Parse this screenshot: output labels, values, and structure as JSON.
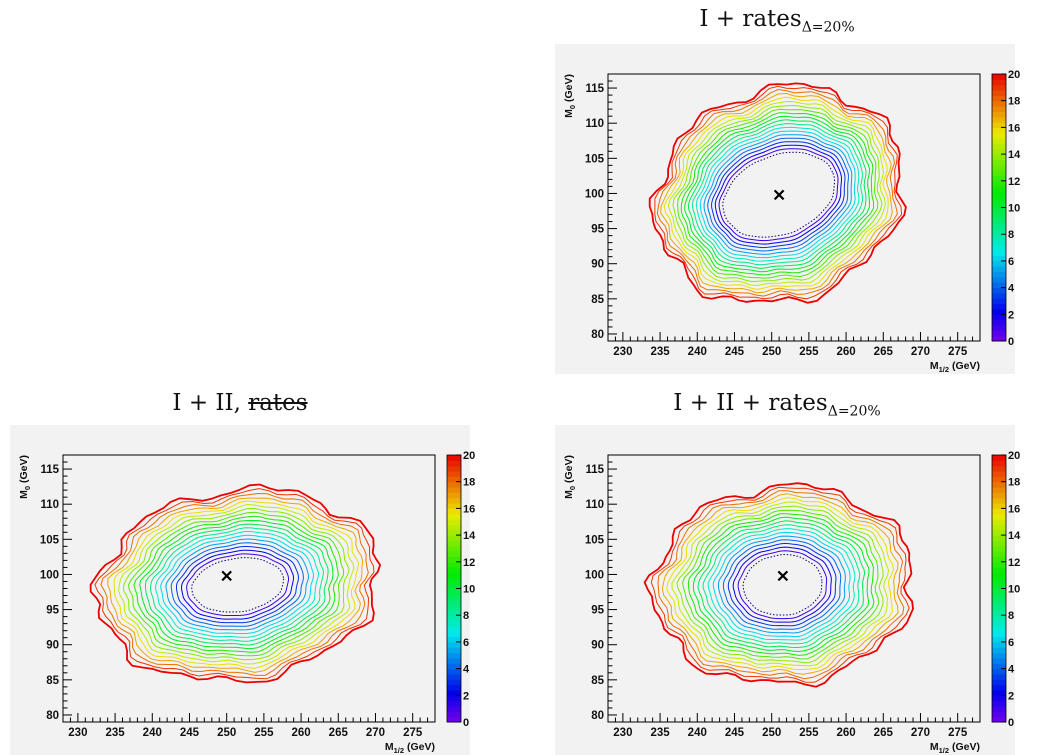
{
  "chart_data": [
    {
      "id": "top-right",
      "type": "contour",
      "title_main": "I + rates",
      "title_sub": "Δ=20%",
      "title_struck": "",
      "xlabel": "M1/2 (GeV)",
      "xlabel_main": "M",
      "xlabel_sub": "1/2",
      "xlabel_unit": " (GeV)",
      "ylabel": "M0 (GeV)",
      "ylabel_main": "M",
      "ylabel_sub": "0",
      "ylabel_unit": " (GeV)",
      "xlim": [
        228,
        278
      ],
      "ylim": [
        79,
        117
      ],
      "xticks": [
        230,
        235,
        240,
        245,
        250,
        255,
        260,
        265,
        270,
        275
      ],
      "yticks": [
        80,
        85,
        90,
        95,
        100,
        105,
        110,
        115
      ],
      "colorbar": {
        "range": [
          0,
          20
        ],
        "ticks": [
          0,
          2,
          4,
          6,
          8,
          10,
          12,
          14,
          16,
          18,
          20
        ]
      },
      "best_fit_marker": {
        "x": 251,
        "y": 99.8
      },
      "contour": {
        "center": [
          251,
          99.8
        ],
        "outer_half_widths": [
          17,
          15
        ],
        "inner_half_widths": [
          7.8,
          5.6
        ],
        "tilt_deg": -22
      }
    },
    {
      "id": "bottom-left",
      "type": "contour",
      "title_main": "I + II, ",
      "title_sub": "",
      "title_struck": "rates",
      "xlabel": "M1/2 (GeV)",
      "xlabel_main": "M",
      "xlabel_sub": "1/2",
      "xlabel_unit": " (GeV)",
      "ylabel": "M0 (GeV)",
      "ylabel_main": "M",
      "ylabel_sub": "0",
      "ylabel_unit": " (GeV)",
      "xlim": [
        228,
        278
      ],
      "ylim": [
        79,
        117
      ],
      "xticks": [
        230,
        235,
        240,
        245,
        250,
        255,
        260,
        265,
        270,
        275
      ],
      "yticks": [
        80,
        85,
        90,
        95,
        100,
        105,
        110,
        115
      ],
      "colorbar": {
        "range": [
          0,
          20
        ],
        "ticks": [
          0,
          2,
          4,
          6,
          8,
          10,
          12,
          14,
          16,
          18,
          20
        ]
      },
      "best_fit_marker": {
        "x": 250,
        "y": 99.8
      },
      "contour": {
        "center": [
          251.5,
          98.5
        ],
        "outer_half_widths": [
          19,
          13.5
        ],
        "inner_half_widths": [
          6.2,
          3.8
        ],
        "tilt_deg": -8
      }
    },
    {
      "id": "bottom-right",
      "type": "contour",
      "title_main": "I + II + rates",
      "title_sub": "Δ=20%",
      "title_struck": "",
      "xlabel": "M1/2 (GeV)",
      "xlabel_main": "M",
      "xlabel_sub": "1/2",
      "xlabel_unit": " (GeV)",
      "ylabel": "M0 (GeV)",
      "ylabel_main": "M",
      "ylabel_sub": "0",
      "ylabel_unit": " (GeV)",
      "xlim": [
        228,
        278
      ],
      "ylim": [
        79,
        117
      ],
      "xticks": [
        230,
        235,
        240,
        245,
        250,
        255,
        260,
        265,
        270,
        275
      ],
      "yticks": [
        80,
        85,
        90,
        95,
        100,
        105,
        110,
        115
      ],
      "colorbar": {
        "range": [
          0,
          20
        ],
        "ticks": [
          0,
          2,
          4,
          6,
          8,
          10,
          12,
          14,
          16,
          18,
          20
        ]
      },
      "best_fit_marker": {
        "x": 251.5,
        "y": 99.8
      },
      "contour": {
        "center": [
          251.5,
          98.5
        ],
        "outer_half_widths": [
          17.5,
          14
        ],
        "inner_half_widths": [
          5.3,
          4.3
        ],
        "tilt_deg": -5
      }
    }
  ]
}
